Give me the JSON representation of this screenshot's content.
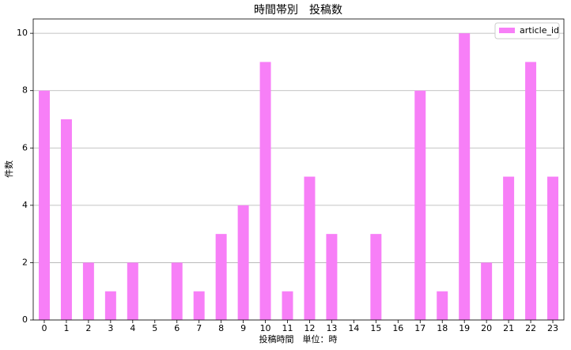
{
  "chart_data": {
    "type": "bar",
    "title": "時間帯別　投稿数",
    "x_label": "投稿時間　単位：時",
    "y_label": "件数",
    "categories": [
      "0",
      "1",
      "2",
      "3",
      "4",
      "5",
      "6",
      "7",
      "8",
      "9",
      "10",
      "11",
      "12",
      "13",
      "14",
      "15",
      "16",
      "17",
      "18",
      "19",
      "20",
      "21",
      "22",
      "23"
    ],
    "series": [
      {
        "name": "article_id",
        "color": "#f77ff7",
        "values": [
          8,
          7,
          2,
          1,
          2,
          0,
          2,
          1,
          3,
          4,
          9,
          1,
          5,
          3,
          0,
          3,
          0,
          8,
          1,
          10,
          2,
          5,
          9,
          5
        ]
      }
    ],
    "ylim": [
      0,
      10.5
    ],
    "yticks": [
      0,
      2,
      4,
      6,
      8,
      10
    ],
    "grid": true,
    "legend": "upper right"
  }
}
